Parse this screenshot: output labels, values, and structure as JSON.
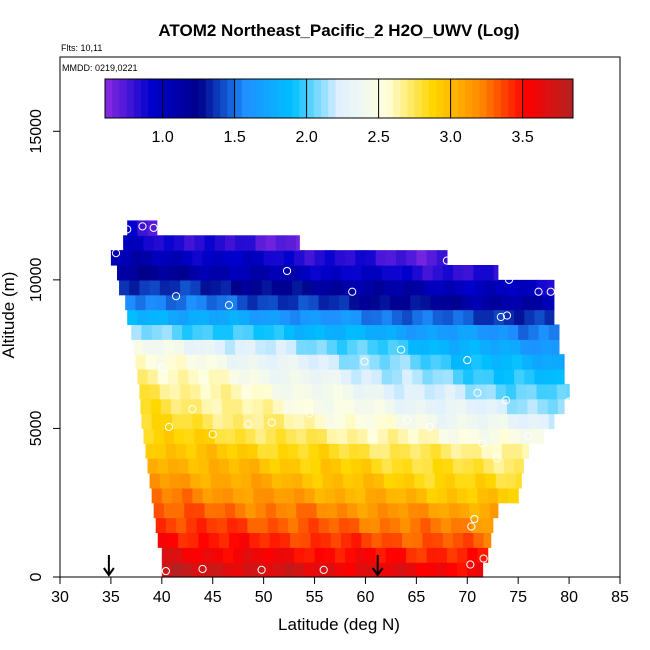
{
  "chart_data": {
    "type": "heatmap",
    "title": "ATOM2 Northeast_Pacific_2 H2O_UWV (Log)",
    "flights_label": "Flts: 10,11",
    "dates_label": "MMDD: 0219,0221",
    "xlabel": "Latitude (deg N)",
    "ylabel": "Altitude (m)",
    "xlim": [
      30,
      85
    ],
    "ylim": [
      0,
      17500
    ],
    "xticks": [
      "30",
      "35",
      "40",
      "45",
      "50",
      "55",
      "60",
      "65",
      "70",
      "75",
      "80",
      "85"
    ],
    "xtick_values": [
      30,
      35,
      40,
      45,
      50,
      55,
      60,
      65,
      70,
      75,
      80,
      85
    ],
    "yticks": [
      "0",
      "5000",
      "10000",
      "15000"
    ],
    "ytick_values": [
      0,
      5000,
      10000,
      15000
    ],
    "colorbar": {
      "range": [
        0.6,
        3.85
      ],
      "ticks": [
        "1.0",
        "1.5",
        "2.0",
        "2.5",
        "3.0",
        "3.5"
      ],
      "tick_values": [
        1.0,
        1.5,
        2.0,
        2.5,
        3.0,
        3.5
      ],
      "stops": [
        "#8a2be2",
        "#0000cd",
        "#00008b",
        "#1e90ff",
        "#00bfff",
        "#e0f0ff",
        "#ffffe0",
        "#ffd700",
        "#ff8c00",
        "#ff0000",
        "#b22222"
      ]
    },
    "arrows_latitude": [
      34.8,
      61.2
    ],
    "layers": [
      {
        "alt0": 0,
        "alt1": 500,
        "lat0": 40.0,
        "lat1": 71.5,
        "v0": 3.75,
        "v1": 3.55
      },
      {
        "alt0": 500,
        "alt1": 1000,
        "lat0": 40.0,
        "lat1": 72.0,
        "v0": 3.62,
        "v1": 3.42
      },
      {
        "alt0": 1000,
        "alt1": 1500,
        "lat0": 39.6,
        "lat1": 72.3,
        "v0": 3.52,
        "v1": 3.28
      },
      {
        "alt0": 1500,
        "alt1": 2000,
        "lat0": 39.4,
        "lat1": 72.5,
        "v0": 3.42,
        "v1": 3.18
      },
      {
        "alt0": 2000,
        "alt1": 2500,
        "lat0": 39.2,
        "lat1": 73.0,
        "v0": 3.32,
        "v1": 3.08
      },
      {
        "alt0": 2500,
        "alt1": 3000,
        "lat0": 39.0,
        "lat1": 75.0,
        "v0": 3.24,
        "v1": 2.9
      },
      {
        "alt0": 3000,
        "alt1": 3500,
        "lat0": 38.8,
        "lat1": 75.3,
        "v0": 3.15,
        "v1": 2.8
      },
      {
        "alt0": 3500,
        "alt1": 4000,
        "lat0": 38.6,
        "lat1": 75.5,
        "v0": 3.08,
        "v1": 2.72
      },
      {
        "alt0": 4000,
        "alt1": 4500,
        "lat0": 38.4,
        "lat1": 76.0,
        "v0": 3.0,
        "v1": 2.62
      },
      {
        "alt0": 4500,
        "alt1": 5000,
        "lat0": 38.2,
        "lat1": 77.5,
        "v0": 2.92,
        "v1": 2.42
      },
      {
        "alt0": 5000,
        "alt1": 5500,
        "lat0": 38.0,
        "lat1": 78.5,
        "v0": 2.85,
        "v1": 2.25
      },
      {
        "alt0": 5500,
        "alt1": 6000,
        "lat0": 37.9,
        "lat1": 79.5,
        "v0": 2.8,
        "v1": 2.1
      },
      {
        "alt0": 6000,
        "alt1": 6500,
        "lat0": 37.8,
        "lat1": 80.0,
        "v0": 2.76,
        "v1": 1.96
      },
      {
        "alt0": 6500,
        "alt1": 7000,
        "lat0": 37.6,
        "lat1": 79.5,
        "v0": 2.7,
        "v1": 1.82
      },
      {
        "alt0": 7000,
        "alt1": 7500,
        "lat0": 37.4,
        "lat1": 79.5,
        "v0": 2.6,
        "v1": 1.72
      },
      {
        "alt0": 7500,
        "alt1": 8000,
        "lat0": 37.2,
        "lat1": 79.0,
        "v0": 2.45,
        "v1": 1.62
      },
      {
        "alt0": 8000,
        "alt1": 8500,
        "lat0": 37.0,
        "lat1": 79.0,
        "v0": 2.1,
        "v1": 1.52
      },
      {
        "alt0": 8500,
        "alt1": 9000,
        "lat0": 36.6,
        "lat1": 78.5,
        "v0": 1.85,
        "v1": 1.32
      },
      {
        "alt0": 9000,
        "alt1": 9500,
        "lat0": 36.4,
        "lat1": 78.5,
        "v0": 1.6,
        "v1": 1.05
      },
      {
        "alt0": 9500,
        "alt1": 10000,
        "lat0": 35.8,
        "lat1": 78.5,
        "v0": 1.42,
        "v1": 0.92
      },
      {
        "alt0": 10000,
        "alt1": 10500,
        "lat0": 35.6,
        "lat1": 73.0,
        "v0": 1.22,
        "v1": 0.78
      },
      {
        "alt0": 10500,
        "alt1": 11000,
        "lat0": 35.0,
        "lat1": 68.0,
        "v0": 1.08,
        "v1": 0.72
      },
      {
        "alt0": 11000,
        "alt1": 11500,
        "lat0": 36.2,
        "lat1": 53.5,
        "v0": 0.95,
        "v1": 0.7
      },
      {
        "alt0": 11500,
        "alt1": 12000,
        "lat0": 36.6,
        "lat1": 39.5,
        "v0": 0.9,
        "v1": 0.8
      }
    ],
    "points": [
      {
        "lat": 40.4,
        "alt": 200
      },
      {
        "lat": 44.0,
        "alt": 270
      },
      {
        "lat": 49.8,
        "alt": 240
      },
      {
        "lat": 55.9,
        "alt": 240
      },
      {
        "lat": 70.3,
        "alt": 420
      },
      {
        "lat": 71.6,
        "alt": 620
      },
      {
        "lat": 70.4,
        "alt": 1700
      },
      {
        "lat": 70.7,
        "alt": 1950
      },
      {
        "lat": 72.9,
        "alt": 4000
      },
      {
        "lat": 71.5,
        "alt": 4500
      },
      {
        "lat": 76.0,
        "alt": 4750
      },
      {
        "lat": 40.7,
        "alt": 5050
      },
      {
        "lat": 45.0,
        "alt": 4800
      },
      {
        "lat": 48.5,
        "alt": 5150
      },
      {
        "lat": 50.8,
        "alt": 5200
      },
      {
        "lat": 54.5,
        "alt": 5500
      },
      {
        "lat": 64.1,
        "alt": 5300
      },
      {
        "lat": 66.3,
        "alt": 5050
      },
      {
        "lat": 43.0,
        "alt": 5650
      },
      {
        "lat": 73.8,
        "alt": 5950
      },
      {
        "lat": 80.0,
        "alt": 5900
      },
      {
        "lat": 71.0,
        "alt": 6200
      },
      {
        "lat": 40.1,
        "alt": 7050
      },
      {
        "lat": 59.9,
        "alt": 7250
      },
      {
        "lat": 70.0,
        "alt": 7300
      },
      {
        "lat": 63.5,
        "alt": 7650
      },
      {
        "lat": 46.6,
        "alt": 9150
      },
      {
        "lat": 73.3,
        "alt": 8750
      },
      {
        "lat": 73.9,
        "alt": 8800
      },
      {
        "lat": 41.4,
        "alt": 9450
      },
      {
        "lat": 58.7,
        "alt": 9600
      },
      {
        "lat": 77.0,
        "alt": 9600
      },
      {
        "lat": 78.2,
        "alt": 9600
      },
      {
        "lat": 74.1,
        "alt": 10000
      },
      {
        "lat": 52.3,
        "alt": 10300
      },
      {
        "lat": 68.0,
        "alt": 10650
      },
      {
        "lat": 35.5,
        "alt": 10900
      },
      {
        "lat": 36.6,
        "alt": 11700
      },
      {
        "lat": 38.1,
        "alt": 11800
      },
      {
        "lat": 39.2,
        "alt": 11750
      }
    ]
  }
}
